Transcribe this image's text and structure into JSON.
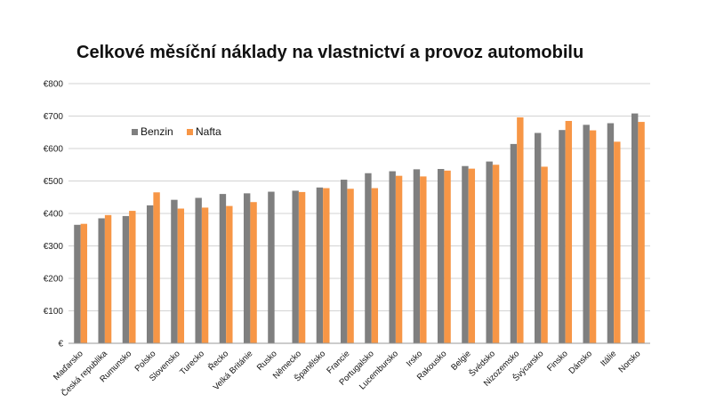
{
  "chart_data": {
    "type": "bar",
    "title": "Celkové měsíční náklady na vlastnictví a provoz automobilu",
    "xlabel": "",
    "ylabel": "",
    "ylim": [
      0,
      800
    ],
    "ytick_values": [
      0,
      100,
      200,
      300,
      400,
      500,
      600,
      700,
      800
    ],
    "ytick_labels": [
      "€",
      "€100",
      "€200",
      "€300",
      "€400",
      "€500",
      "€600",
      "€700",
      "€800"
    ],
    "grid": true,
    "legend_position": "top-left",
    "categories": [
      "Maďarsko",
      "Česká republika",
      "Rumunsko",
      "Polsko",
      "Slovensko",
      "Turecko",
      "Řecko",
      "Velká Británie",
      "Rusko",
      "Německo",
      "Španělsko",
      "Francie",
      "Portugalsko",
      "Lucembursko",
      "Irsko",
      "Rakousko",
      "Belgie",
      "Švédsko",
      "Nizozemsko",
      "Švýcarsko",
      "Finsko",
      "Dánsko",
      "Itálie",
      "Norsko"
    ],
    "series": [
      {
        "name": "Benzin",
        "color": "#7f7f7f",
        "values": [
          365,
          385,
          392,
          425,
          442,
          448,
          460,
          462,
          467,
          470,
          480,
          504,
          524,
          530,
          536,
          537,
          546,
          560,
          614,
          648,
          657,
          673,
          678,
          708
        ]
      },
      {
        "name": "Nafta",
        "color": "#f79646",
        "values": [
          368,
          395,
          408,
          465,
          415,
          418,
          423,
          435,
          null,
          466,
          478,
          476,
          478,
          516,
          514,
          532,
          538,
          550,
          696,
          544,
          685,
          656,
          621,
          682
        ]
      }
    ]
  }
}
